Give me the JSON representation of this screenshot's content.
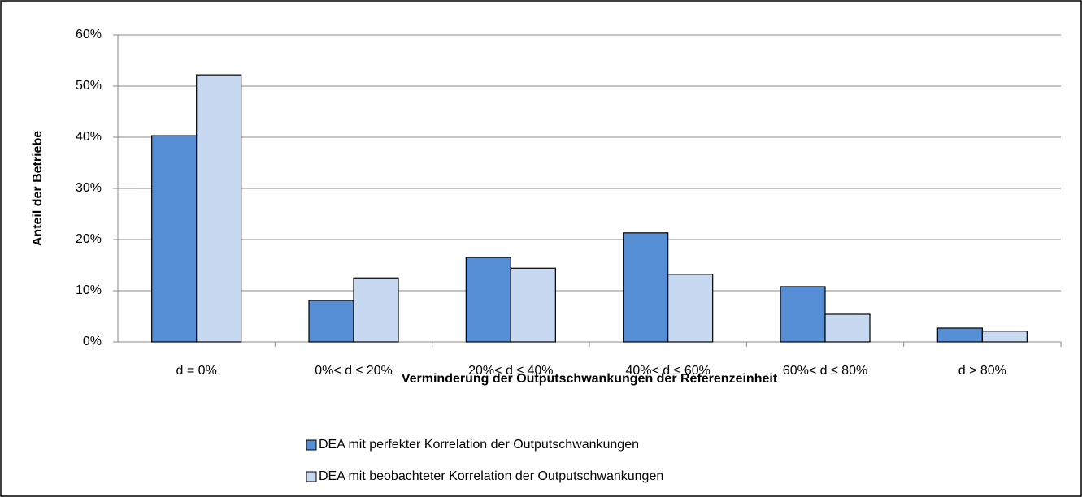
{
  "chart_data": {
    "type": "bar",
    "x_label": "Verminderung der Outputschwankungen  der Referenzeinheit",
    "y_label": "Anteil der Betriebe",
    "categories": [
      "d = 0%",
      "0%< d ≤ 20%",
      "20%< d ≤ 40%",
      "40%< d ≤ 60%",
      "60%< d ≤ 80%",
      "d > 80%"
    ],
    "series": [
      {
        "name": "DEA mit perfekter Korrelation der Outputschwankungen",
        "color": "#558ed5",
        "values": [
          40.3,
          8.1,
          16.5,
          21.3,
          10.8,
          2.7
        ]
      },
      {
        "name": "DEA mit beobachteter Korrelation der Outputschwankungen",
        "color": "#c6d9f1",
        "values": [
          52.2,
          12.5,
          14.4,
          13.2,
          5.4,
          2.1
        ]
      }
    ],
    "ylim": [
      0,
      60
    ],
    "yticks": [
      {
        "value": 0,
        "label": "0%"
      },
      {
        "value": 10,
        "label": "10%"
      },
      {
        "value": 20,
        "label": "20%"
      },
      {
        "value": 30,
        "label": "30%"
      },
      {
        "value": 40,
        "label": "40%"
      },
      {
        "value": 50,
        "label": "50%"
      },
      {
        "value": 60,
        "label": "60%"
      }
    ],
    "grid": true
  }
}
